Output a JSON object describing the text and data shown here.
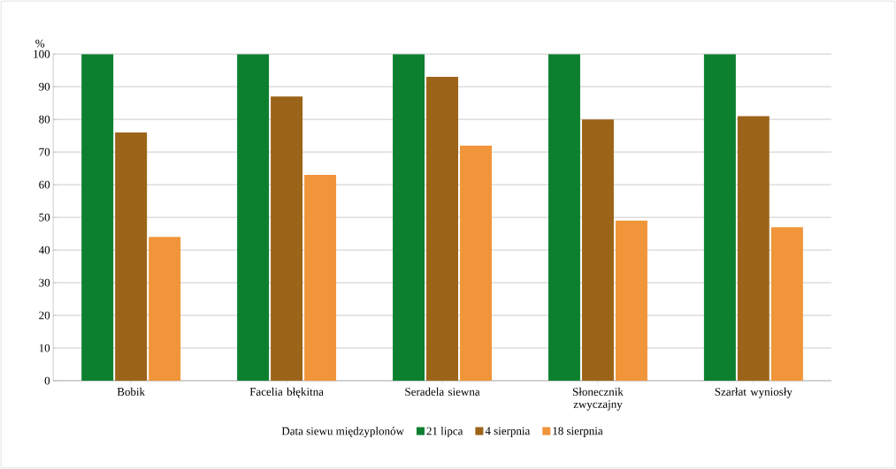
{
  "chart_data": {
    "type": "bar",
    "ylabel": "%",
    "legend_title": "Data siewu międzyplonów",
    "categories": [
      "Bobik",
      "Facelia błękitna",
      "Seradela siewna",
      "Słonecznik zwyczajny",
      "Szarłat wyniosły"
    ],
    "series": [
      {
        "name": "21 lipca",
        "color": "#0d8030",
        "values": [
          100,
          100,
          100,
          100,
          100
        ]
      },
      {
        "name": "4 sierpnia",
        "color": "#9c6419",
        "values": [
          76,
          87,
          93,
          80,
          81
        ]
      },
      {
        "name": "18 sierpnia",
        "color": "#f0953a",
        "values": [
          44,
          63,
          72,
          49,
          47
        ]
      }
    ],
    "ylim": [
      0,
      100
    ],
    "yticks": [
      0,
      10,
      20,
      30,
      40,
      50,
      60,
      70,
      80,
      90,
      100
    ],
    "grid": "y",
    "legend": "bottom"
  }
}
